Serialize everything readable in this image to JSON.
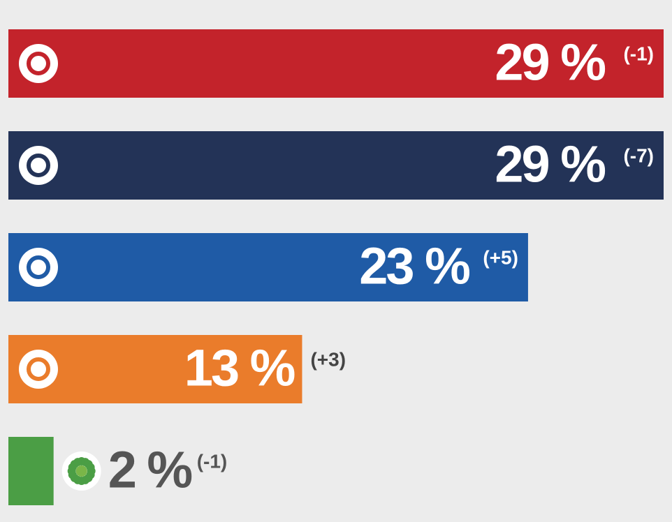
{
  "chart_data": {
    "type": "bar",
    "orientation": "horizontal",
    "values": [
      29,
      29,
      23,
      13,
      2
    ],
    "value_labels": [
      "29 %",
      "29 %",
      "23 %",
      "13 %",
      "2 %"
    ],
    "changes": [
      "(-1)",
      "(-7)",
      "(+5)",
      "(+3)",
      "(-1)"
    ],
    "colors": [
      "#c3232b",
      "#233357",
      "#1f5ba6",
      "#ea7c2b",
      "#4b9e45"
    ]
  }
}
